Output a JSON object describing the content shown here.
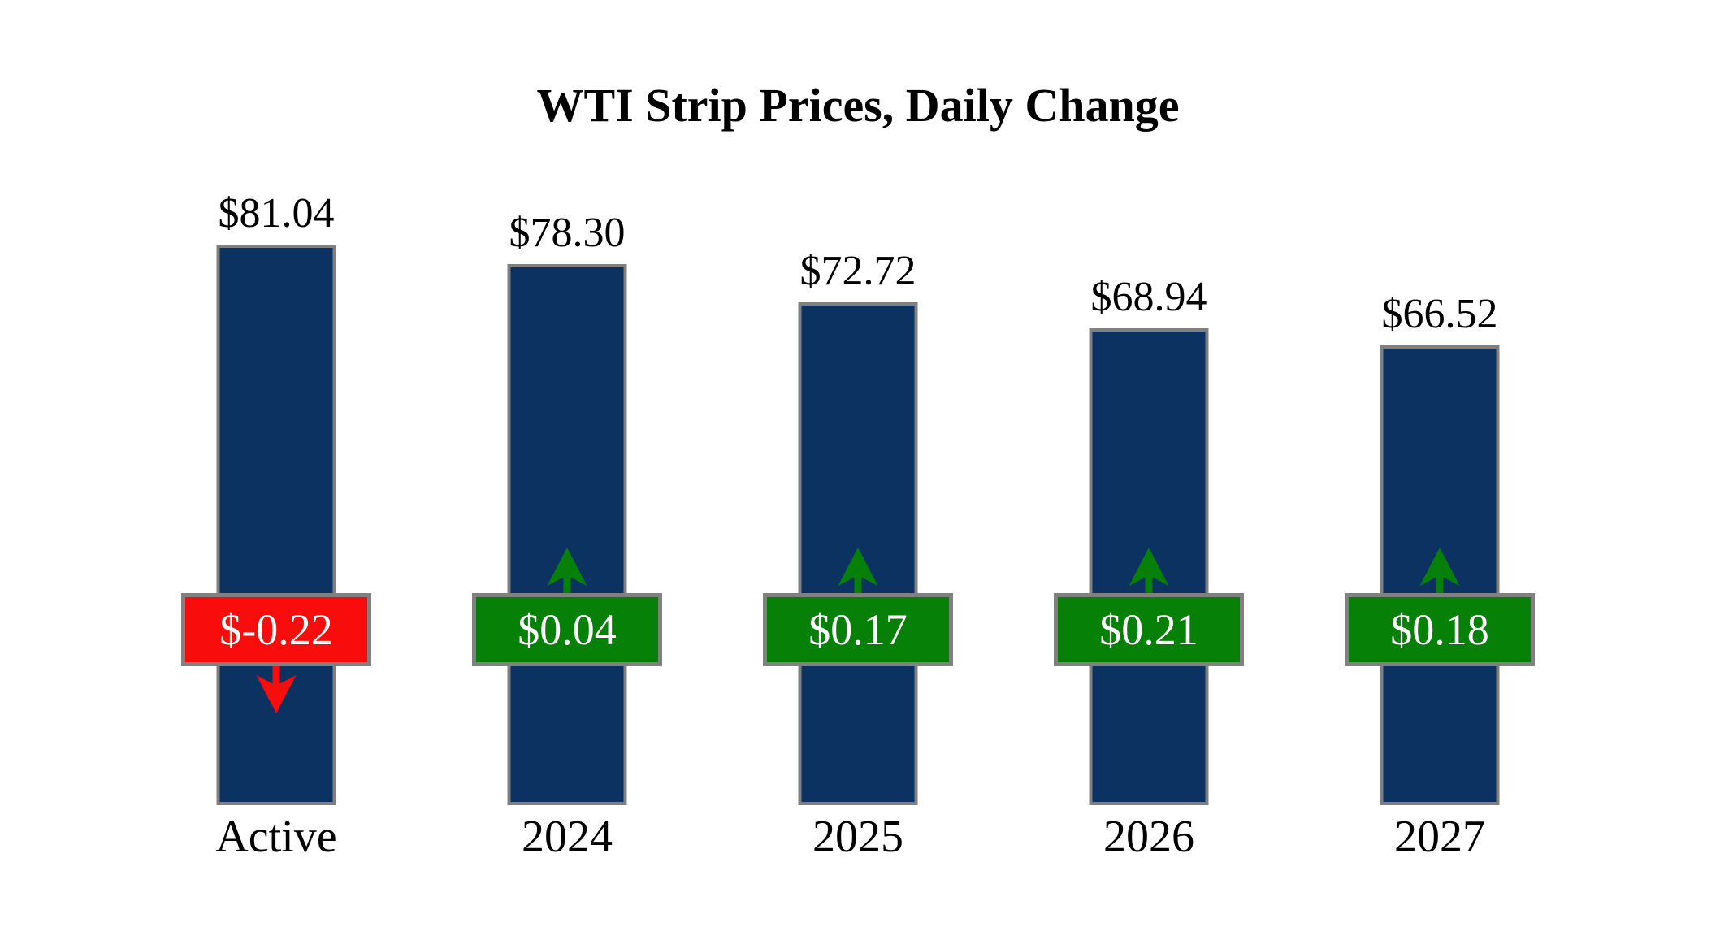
{
  "title": "WTI Strip Prices, Daily Change",
  "chart_data": {
    "type": "bar",
    "title": "WTI Strip Prices, Daily Change",
    "categories": [
      "Active",
      "2024",
      "2025",
      "2026",
      "2027"
    ],
    "values": [
      81.04,
      78.3,
      72.72,
      68.94,
      66.52
    ],
    "value_labels": [
      "$81.04",
      "$78.30",
      "$72.72",
      "$68.94",
      "$66.52"
    ],
    "changes": [
      -0.22,
      0.04,
      0.17,
      0.21,
      0.18
    ],
    "change_labels": [
      "$-0.22",
      "$0.04",
      "$0.17",
      "$0.21",
      "$0.18"
    ],
    "directions": [
      "down",
      "up",
      "up",
      "up",
      "up"
    ],
    "xlabel": "",
    "ylabel": "",
    "ylim": [
      0,
      81.04
    ],
    "grid": false,
    "legend": false
  },
  "colors": {
    "bar_fill": "#0B3261",
    "bar_border": "#808080",
    "positive": "#078007",
    "negative": "#F90C0C",
    "badge_border": "#808080",
    "badge_text": "#FFFFFF",
    "label_text": "#000000",
    "background": "#FFFFFF"
  }
}
